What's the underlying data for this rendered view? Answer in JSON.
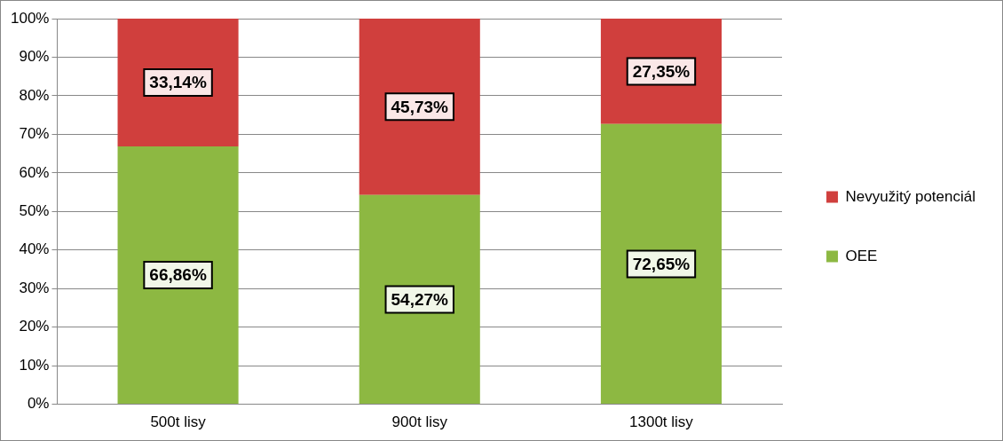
{
  "chart_data": {
    "type": "bar",
    "stacked": true,
    "categories": [
      "500t lisy",
      "900t lisy",
      "1300t lisy"
    ],
    "series": [
      {
        "name": "OEE",
        "color": "#8db842",
        "values": [
          66.86,
          54.27,
          72.65
        ],
        "value_labels": [
          "66,86%",
          "54,27%",
          "72,65%"
        ]
      },
      {
        "name": "Nevyužitý potenciál",
        "color": "#d03f3d",
        "values": [
          33.14,
          45.73,
          27.35
        ],
        "value_labels": [
          "33,14%",
          "45,73%",
          "27,35%"
        ]
      }
    ],
    "ylim": [
      0,
      100
    ],
    "yticks": [
      {
        "value": 0,
        "label": "0%"
      },
      {
        "value": 10,
        "label": "10%"
      },
      {
        "value": 20,
        "label": "20%"
      },
      {
        "value": 30,
        "label": "30%"
      },
      {
        "value": 40,
        "label": "40%"
      },
      {
        "value": 50,
        "label": "50%"
      },
      {
        "value": 60,
        "label": "60%"
      },
      {
        "value": 70,
        "label": "70%"
      },
      {
        "value": 80,
        "label": "80%"
      },
      {
        "value": 90,
        "label": "90%"
      },
      {
        "value": 100,
        "label": "100%"
      }
    ],
    "grid": "y",
    "legend": "right"
  }
}
